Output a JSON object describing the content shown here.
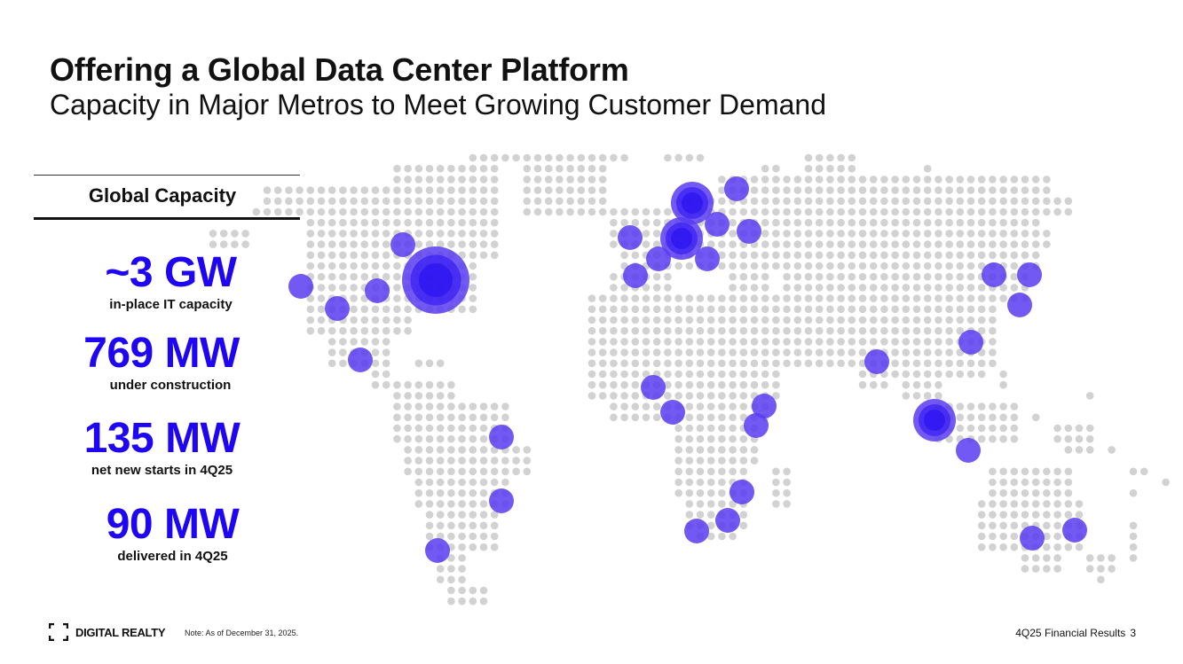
{
  "slide": {
    "title": "Offering a Global Data Center Platform",
    "subtitle": "Capacity in Major Metros to Meet Growing Customer Demand"
  },
  "capacity": {
    "heading": "Global Capacity",
    "stats": [
      {
        "value": "~3 GW",
        "label": "in-place IT capacity"
      },
      {
        "value": "769 MW",
        "label": "under construction"
      },
      {
        "value": "135 MW",
        "label": "net new starts in 4Q25"
      },
      {
        "value": "90 MW",
        "label": "delivered in 4Q25"
      }
    ]
  },
  "footer": {
    "logo_text": "DIGITAL REALTY",
    "note": "Note: As of December 31, 2025.",
    "report": "4Q25 Financial Results",
    "page_number": "3"
  },
  "colors": {
    "accent": "#1E06F2",
    "marker": "#5A3CF2",
    "dot": "#D2D2D2"
  }
}
